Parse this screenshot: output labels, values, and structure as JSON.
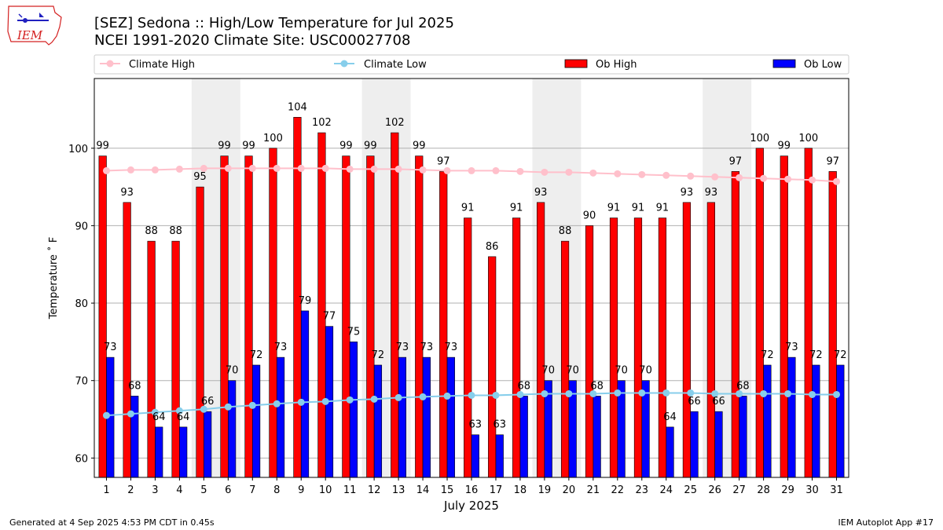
{
  "header": {
    "title_line1": "[SEZ] Sedona :: High/Low Temperature for Jul 2025",
    "title_line2": "NCEI 1991-2020 Climate Site: USC00027708",
    "logo_text": "IEM"
  },
  "footer": {
    "generated": "Generated at 4 Sep 2025 4:53 PM CDT in 0.45s",
    "app": "IEM Autoplot App #17"
  },
  "colors": {
    "ob_high": "#ff0000",
    "ob_low": "#0000ff",
    "climate_high": "#ffc0cb",
    "climate_low": "#87ceeb",
    "weekend_shade": "#eeeeee",
    "grid": "#b0b0b0",
    "logo": "#d42020"
  },
  "chart_data": {
    "type": "bar",
    "xlabel": "July 2025",
    "ylabel": "Temperature ˚ F",
    "ylim": [
      57.5,
      109
    ],
    "yticks": [
      60,
      70,
      80,
      90,
      100
    ],
    "grid": true,
    "legend": {
      "climate_high": "Climate High",
      "climate_low": "Climate Low",
      "ob_high": "Ob High",
      "ob_low": "Ob Low"
    },
    "categories": [
      "1",
      "2",
      "3",
      "4",
      "5",
      "6",
      "7",
      "8",
      "9",
      "10",
      "11",
      "12",
      "13",
      "14",
      "15",
      "16",
      "17",
      "18",
      "19",
      "20",
      "21",
      "22",
      "23",
      "24",
      "25",
      "26",
      "27",
      "28",
      "29",
      "30",
      "31"
    ],
    "shaded_ranges": [
      [
        5,
        6
      ],
      [
        12,
        13
      ],
      [
        19,
        20
      ],
      [
        26,
        27
      ]
    ],
    "series": [
      {
        "name": "Ob High",
        "type": "bar",
        "values": [
          99,
          93,
          88,
          88,
          95,
          99,
          99,
          100,
          104,
          102,
          99,
          99,
          102,
          99,
          97,
          91,
          86,
          91,
          93,
          88,
          90,
          91,
          91,
          91,
          93,
          93,
          97,
          100,
          99,
          100,
          97
        ]
      },
      {
        "name": "Ob Low",
        "type": "bar",
        "values": [
          73,
          68,
          64,
          64,
          66,
          70,
          72,
          73,
          79,
          77,
          75,
          72,
          73,
          73,
          73,
          63,
          63,
          68,
          70,
          70,
          68,
          70,
          70,
          64,
          66,
          66,
          68,
          72,
          73,
          72,
          72
        ]
      },
      {
        "name": "Climate High",
        "type": "line",
        "values": [
          97.1,
          97.2,
          97.2,
          97.3,
          97.4,
          97.4,
          97.4,
          97.4,
          97.4,
          97.4,
          97.3,
          97.3,
          97.3,
          97.2,
          97.1,
          97.1,
          97.1,
          97.0,
          96.9,
          96.9,
          96.8,
          96.7,
          96.6,
          96.5,
          96.4,
          96.3,
          96.2,
          96.1,
          96.0,
          95.9,
          95.7
        ]
      },
      {
        "name": "Climate Low",
        "type": "line",
        "values": [
          65.5,
          65.7,
          65.9,
          66.1,
          66.3,
          66.6,
          66.8,
          67.0,
          67.2,
          67.3,
          67.5,
          67.6,
          67.8,
          67.9,
          68.0,
          68.1,
          68.1,
          68.2,
          68.3,
          68.3,
          68.3,
          68.4,
          68.4,
          68.4,
          68.4,
          68.3,
          68.3,
          68.3,
          68.3,
          68.2,
          68.2
        ]
      }
    ]
  }
}
